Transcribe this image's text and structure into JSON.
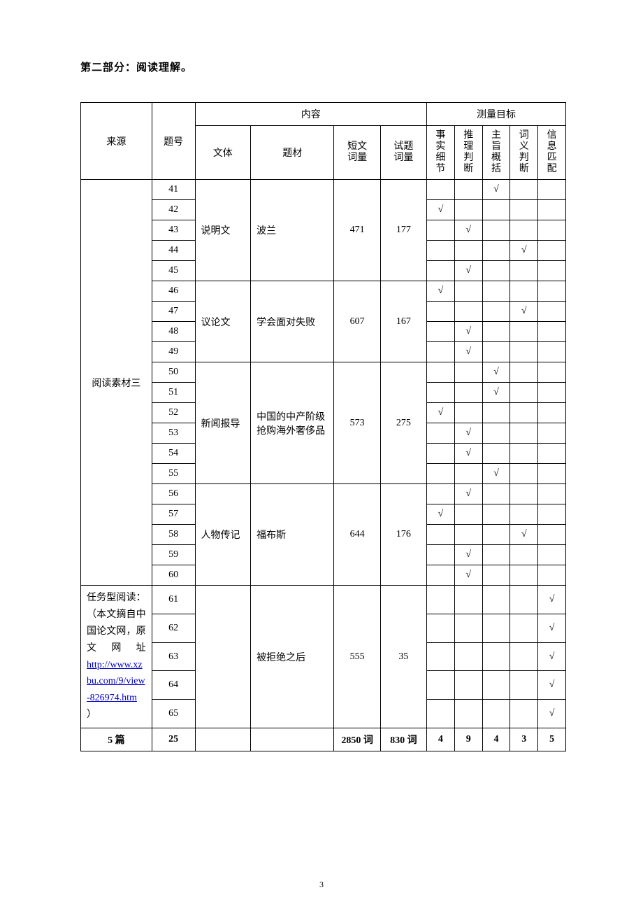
{
  "title": "第二部分：阅读理解。",
  "headers": {
    "source": "来源",
    "qno": "题号",
    "content": "内容",
    "wenti": "文体",
    "ticai": "题材",
    "short_words": [
      "短文",
      "词量"
    ],
    "test_words": [
      "试题",
      "词量"
    ],
    "measure_targets": "测量目标",
    "m1": [
      "事",
      "实",
      "细",
      "节"
    ],
    "m2": [
      "推",
      "理",
      "判",
      "断"
    ],
    "m3": [
      "主",
      "旨",
      "概",
      "括"
    ],
    "m4": [
      "词",
      "义",
      "判",
      "断"
    ],
    "m5": [
      "信",
      "息",
      "匹",
      "配"
    ]
  },
  "check": "√",
  "source1": "阅读素材三",
  "source2_pre": "任务型阅读：（本文摘自中国论文网，原 文 网 址",
  "source2_link": "http://www.xzbu.com/9/view-826974.htm",
  "source2_post": "）",
  "groups": [
    {
      "wenti": "说明文",
      "ticai": "波兰",
      "short": "471",
      "test": "177",
      "rows": [
        {
          "qno": "41",
          "m": [
            false,
            false,
            true,
            false,
            false
          ]
        },
        {
          "qno": "42",
          "m": [
            true,
            false,
            false,
            false,
            false
          ]
        },
        {
          "qno": "43",
          "m": [
            false,
            true,
            false,
            false,
            false
          ]
        },
        {
          "qno": "44",
          "m": [
            false,
            false,
            false,
            true,
            false
          ]
        },
        {
          "qno": "45",
          "m": [
            false,
            true,
            false,
            false,
            false
          ]
        }
      ]
    },
    {
      "wenti": "议论文",
      "ticai": "学会面对失败",
      "short": "607",
      "test": "167",
      "rows": [
        {
          "qno": "46",
          "m": [
            true,
            false,
            false,
            false,
            false
          ]
        },
        {
          "qno": "47",
          "m": [
            false,
            false,
            false,
            true,
            false
          ]
        },
        {
          "qno": "48",
          "m": [
            false,
            true,
            false,
            false,
            false
          ]
        },
        {
          "qno": "49",
          "m": [
            false,
            true,
            false,
            false,
            false
          ]
        }
      ]
    },
    {
      "wenti": "新闻报导",
      "ticai": "中国的中产阶级抢购海外奢侈品",
      "short": "573",
      "test": "275",
      "rows": [
        {
          "qno": "50",
          "m": [
            false,
            false,
            true,
            false,
            false
          ]
        },
        {
          "qno": "51",
          "m": [
            false,
            false,
            true,
            false,
            false
          ]
        },
        {
          "qno": "52",
          "m": [
            true,
            false,
            false,
            false,
            false
          ]
        },
        {
          "qno": "53",
          "m": [
            false,
            true,
            false,
            false,
            false
          ]
        },
        {
          "qno": "54",
          "m": [
            false,
            true,
            false,
            false,
            false
          ]
        },
        {
          "qno": "55",
          "m": [
            false,
            false,
            true,
            false,
            false
          ]
        }
      ]
    },
    {
      "wenti": "人物传记",
      "ticai": "福布斯",
      "short": "644",
      "test": "176",
      "rows": [
        {
          "qno": "56",
          "m": [
            false,
            true,
            false,
            false,
            false
          ]
        },
        {
          "qno": "57",
          "m": [
            true,
            false,
            false,
            false,
            false
          ]
        },
        {
          "qno": "58",
          "m": [
            false,
            false,
            false,
            true,
            false
          ]
        },
        {
          "qno": "59",
          "m": [
            false,
            true,
            false,
            false,
            false
          ]
        },
        {
          "qno": "60",
          "m": [
            false,
            true,
            false,
            false,
            false
          ]
        }
      ]
    }
  ],
  "group5": {
    "wenti": "",
    "ticai": "被拒绝之后",
    "short": "555",
    "test": "35",
    "rows": [
      {
        "qno": "61",
        "m": [
          false,
          false,
          false,
          false,
          true
        ]
      },
      {
        "qno": "62",
        "m": [
          false,
          false,
          false,
          false,
          true
        ]
      },
      {
        "qno": "63",
        "m": [
          false,
          false,
          false,
          false,
          true
        ]
      },
      {
        "qno": "64",
        "m": [
          false,
          false,
          false,
          false,
          true
        ]
      },
      {
        "qno": "65",
        "m": [
          false,
          false,
          false,
          false,
          true
        ]
      }
    ]
  },
  "summary": {
    "source": "5 篇",
    "qno": "25",
    "short": "2850 词",
    "test": "830 词",
    "m": [
      "4",
      "9",
      "4",
      "3",
      "5"
    ]
  },
  "page_number": "3"
}
